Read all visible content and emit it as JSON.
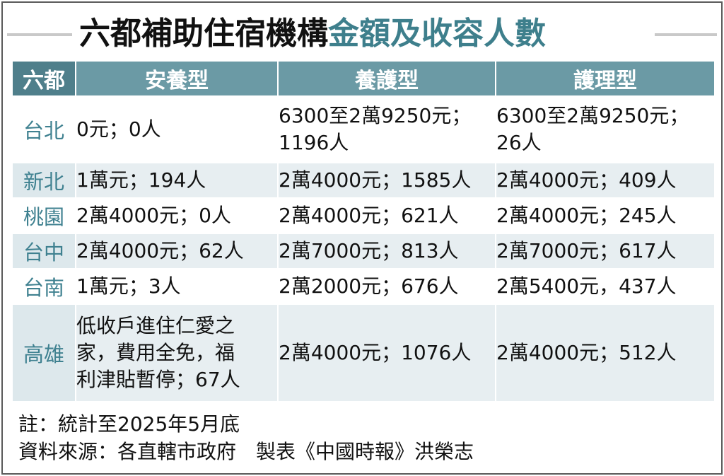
{
  "title": {
    "part1": "六都補助住宿機構",
    "part2": "金額及收容人數"
  },
  "colors": {
    "accent": "#3e7f8c",
    "header_bg": "#6b9aa5",
    "row_alt": "#e7eef1"
  },
  "table": {
    "headers": [
      "六都",
      "安養型",
      "養護型",
      "護理型"
    ],
    "rows": [
      {
        "city": "台北",
        "anyang": [
          "0元；0人"
        ],
        "yanghu": [
          "6300至2萬9250元；",
          "1196人"
        ],
        "huli": [
          "6300至2萬9250元；",
          "26人"
        ]
      },
      {
        "city": "新北",
        "anyang": [
          "1萬元；194人"
        ],
        "yanghu": [
          "2萬4000元；1585人"
        ],
        "huli": [
          "2萬4000元；409人"
        ]
      },
      {
        "city": "桃園",
        "anyang": [
          "2萬4000元；0人"
        ],
        "yanghu": [
          "2萬4000元；621人"
        ],
        "huli": [
          "2萬4000元；245人"
        ]
      },
      {
        "city": "台中",
        "anyang": [
          "2萬4000元；62人"
        ],
        "yanghu": [
          "2萬7000元；813人"
        ],
        "huli": [
          "2萬7000元；617人"
        ]
      },
      {
        "city": "台南",
        "anyang": [
          "1萬元；3人"
        ],
        "yanghu": [
          "2萬2000元；676人"
        ],
        "huli": [
          "2萬5400元，437人"
        ]
      },
      {
        "city": "高雄",
        "anyang": [
          "低收戶進住仁愛之",
          "家，費用全免，福",
          "利津貼暫停；67人"
        ],
        "yanghu": [
          "2萬4000元；1076人"
        ],
        "huli": [
          "2萬4000元；512人"
        ]
      }
    ]
  },
  "notes": {
    "note": "註：統計至2025年5月底",
    "source": "資料來源：各直轄市政府　製表《中國時報》洪榮志"
  }
}
